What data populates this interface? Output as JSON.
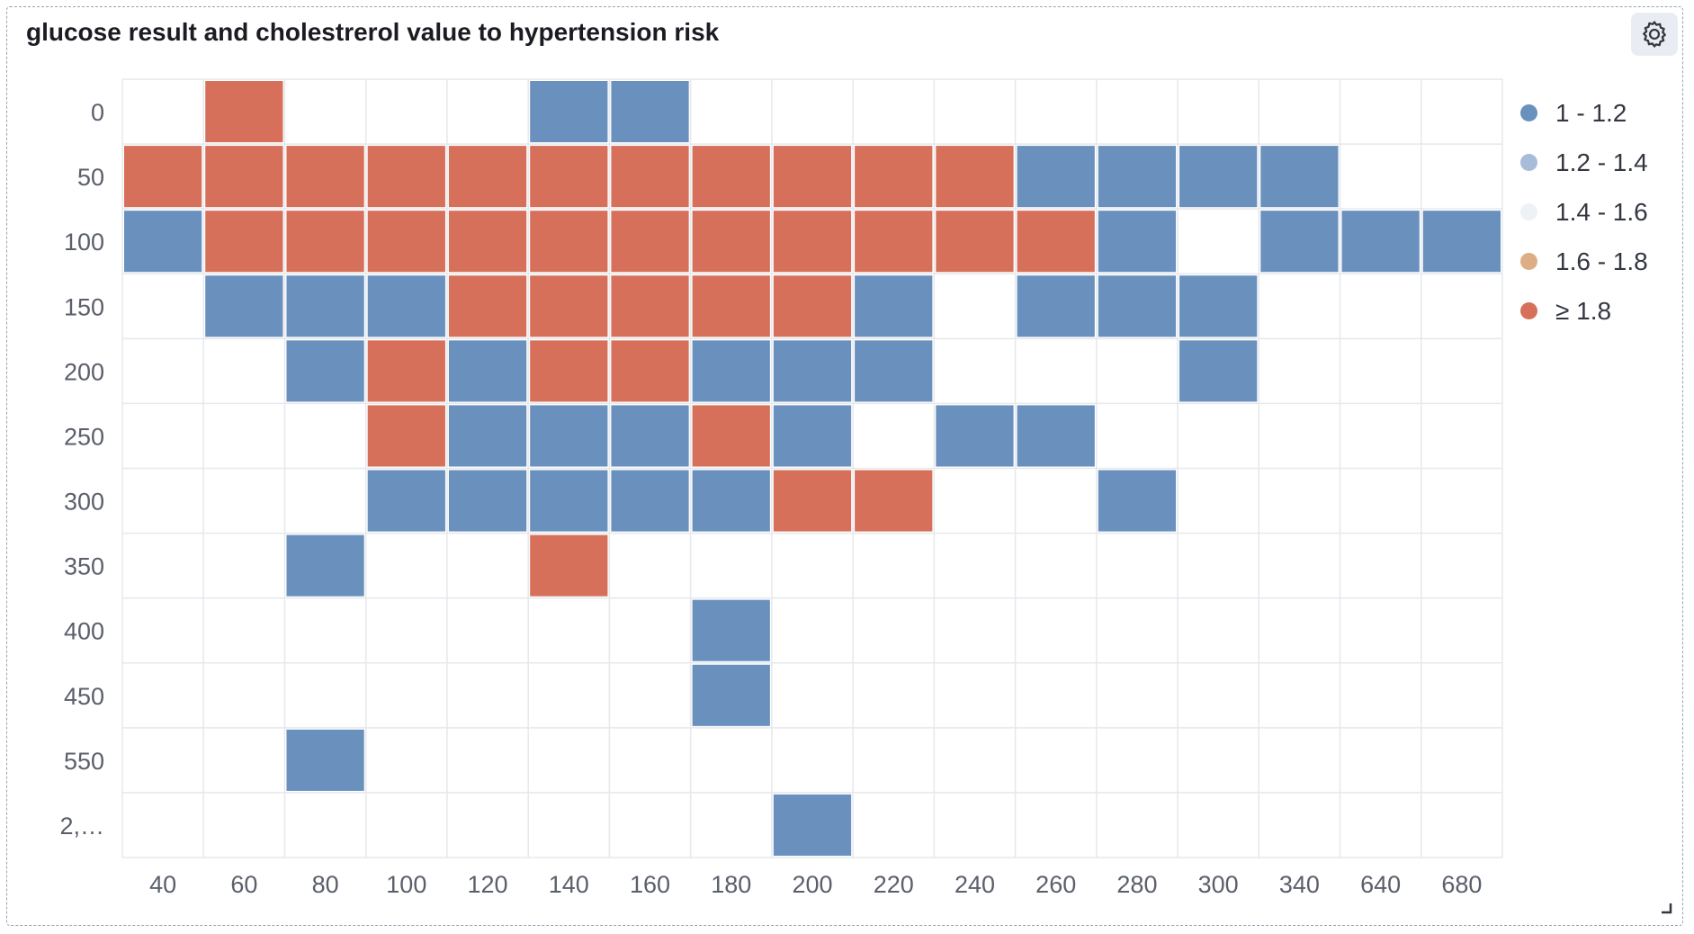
{
  "panel": {
    "title": "glucose result and cholestrerol value to hypertension risk",
    "settings_icon": "gear-icon",
    "resize_icon": "resize-handle-icon"
  },
  "colors": {
    "low": "#6a91be",
    "low_mid": "#a8bcd9",
    "mid": "#eef1f5",
    "high_mid": "#ddae86",
    "high": "#d6705a",
    "grid": "#e6e8ec",
    "axis_text": "#5a5f6b"
  },
  "legend": [
    {
      "label": "1 - 1.2",
      "color": "#6a91be"
    },
    {
      "label": "1.2 - 1.4",
      "color": "#a8bcd9"
    },
    {
      "label": "1.4 - 1.6",
      "color": "#eef1f5"
    },
    {
      "label": "1.6 - 1.8",
      "color": "#ddae86"
    },
    {
      "label": "≥ 1.8",
      "color": "#d6705a"
    }
  ],
  "chart_data": {
    "type": "heatmap",
    "title": "glucose result and cholestrerol value to hypertension risk",
    "x_categories": [
      "40",
      "60",
      "80",
      "100",
      "120",
      "140",
      "160",
      "180",
      "200",
      "220",
      "240",
      "260",
      "280",
      "300",
      "340",
      "640",
      "680"
    ],
    "y_categories": [
      "0",
      "50",
      "100",
      "150",
      "200",
      "250",
      "300",
      "350",
      "400",
      "450",
      "550",
      "2,…"
    ],
    "cells": [
      {
        "x": "60",
        "y": "0",
        "band": "≥ 1.8"
      },
      {
        "x": "140",
        "y": "0",
        "band": "1 - 1.2"
      },
      {
        "x": "160",
        "y": "0",
        "band": "1 - 1.2"
      },
      {
        "x": "40",
        "y": "50",
        "band": "≥ 1.8"
      },
      {
        "x": "60",
        "y": "50",
        "band": "≥ 1.8"
      },
      {
        "x": "80",
        "y": "50",
        "band": "≥ 1.8"
      },
      {
        "x": "100",
        "y": "50",
        "band": "≥ 1.8"
      },
      {
        "x": "120",
        "y": "50",
        "band": "≥ 1.8"
      },
      {
        "x": "140",
        "y": "50",
        "band": "≥ 1.8"
      },
      {
        "x": "160",
        "y": "50",
        "band": "≥ 1.8"
      },
      {
        "x": "180",
        "y": "50",
        "band": "≥ 1.8"
      },
      {
        "x": "200",
        "y": "50",
        "band": "≥ 1.8"
      },
      {
        "x": "220",
        "y": "50",
        "band": "≥ 1.8"
      },
      {
        "x": "240",
        "y": "50",
        "band": "≥ 1.8"
      },
      {
        "x": "260",
        "y": "50",
        "band": "1 - 1.2"
      },
      {
        "x": "280",
        "y": "50",
        "band": "1 - 1.2"
      },
      {
        "x": "300",
        "y": "50",
        "band": "1 - 1.2"
      },
      {
        "x": "340",
        "y": "50",
        "band": "1 - 1.2"
      },
      {
        "x": "40",
        "y": "100",
        "band": "1 - 1.2"
      },
      {
        "x": "60",
        "y": "100",
        "band": "≥ 1.8"
      },
      {
        "x": "80",
        "y": "100",
        "band": "≥ 1.8"
      },
      {
        "x": "100",
        "y": "100",
        "band": "≥ 1.8"
      },
      {
        "x": "120",
        "y": "100",
        "band": "≥ 1.8"
      },
      {
        "x": "140",
        "y": "100",
        "band": "≥ 1.8"
      },
      {
        "x": "160",
        "y": "100",
        "band": "≥ 1.8"
      },
      {
        "x": "180",
        "y": "100",
        "band": "≥ 1.8"
      },
      {
        "x": "200",
        "y": "100",
        "band": "≥ 1.8"
      },
      {
        "x": "220",
        "y": "100",
        "band": "≥ 1.8"
      },
      {
        "x": "240",
        "y": "100",
        "band": "≥ 1.8"
      },
      {
        "x": "260",
        "y": "100",
        "band": "≥ 1.8"
      },
      {
        "x": "280",
        "y": "100",
        "band": "1 - 1.2"
      },
      {
        "x": "340",
        "y": "100",
        "band": "1 - 1.2"
      },
      {
        "x": "640",
        "y": "100",
        "band": "1 - 1.2"
      },
      {
        "x": "680",
        "y": "100",
        "band": "1 - 1.2"
      },
      {
        "x": "60",
        "y": "150",
        "band": "1 - 1.2"
      },
      {
        "x": "80",
        "y": "150",
        "band": "1 - 1.2"
      },
      {
        "x": "100",
        "y": "150",
        "band": "1 - 1.2"
      },
      {
        "x": "120",
        "y": "150",
        "band": "≥ 1.8"
      },
      {
        "x": "140",
        "y": "150",
        "band": "≥ 1.8"
      },
      {
        "x": "160",
        "y": "150",
        "band": "≥ 1.8"
      },
      {
        "x": "180",
        "y": "150",
        "band": "≥ 1.8"
      },
      {
        "x": "200",
        "y": "150",
        "band": "≥ 1.8"
      },
      {
        "x": "220",
        "y": "150",
        "band": "1 - 1.2"
      },
      {
        "x": "260",
        "y": "150",
        "band": "1 - 1.2"
      },
      {
        "x": "280",
        "y": "150",
        "band": "1 - 1.2"
      },
      {
        "x": "300",
        "y": "150",
        "band": "1 - 1.2"
      },
      {
        "x": "80",
        "y": "200",
        "band": "1 - 1.2"
      },
      {
        "x": "100",
        "y": "200",
        "band": "≥ 1.8"
      },
      {
        "x": "120",
        "y": "200",
        "band": "1 - 1.2"
      },
      {
        "x": "140",
        "y": "200",
        "band": "≥ 1.8"
      },
      {
        "x": "160",
        "y": "200",
        "band": "≥ 1.8"
      },
      {
        "x": "180",
        "y": "200",
        "band": "1 - 1.2"
      },
      {
        "x": "200",
        "y": "200",
        "band": "1 - 1.2"
      },
      {
        "x": "220",
        "y": "200",
        "band": "1 - 1.2"
      },
      {
        "x": "300",
        "y": "200",
        "band": "1 - 1.2"
      },
      {
        "x": "100",
        "y": "250",
        "band": "≥ 1.8"
      },
      {
        "x": "120",
        "y": "250",
        "band": "1 - 1.2"
      },
      {
        "x": "140",
        "y": "250",
        "band": "1 - 1.2"
      },
      {
        "x": "160",
        "y": "250",
        "band": "1 - 1.2"
      },
      {
        "x": "180",
        "y": "250",
        "band": "≥ 1.8"
      },
      {
        "x": "200",
        "y": "250",
        "band": "1 - 1.2"
      },
      {
        "x": "240",
        "y": "250",
        "band": "1 - 1.2"
      },
      {
        "x": "260",
        "y": "250",
        "band": "1 - 1.2"
      },
      {
        "x": "100",
        "y": "300",
        "band": "1 - 1.2"
      },
      {
        "x": "120",
        "y": "300",
        "band": "1 - 1.2"
      },
      {
        "x": "140",
        "y": "300",
        "band": "1 - 1.2"
      },
      {
        "x": "160",
        "y": "300",
        "band": "1 - 1.2"
      },
      {
        "x": "180",
        "y": "300",
        "band": "1 - 1.2"
      },
      {
        "x": "200",
        "y": "300",
        "band": "≥ 1.8"
      },
      {
        "x": "220",
        "y": "300",
        "band": "≥ 1.8"
      },
      {
        "x": "280",
        "y": "300",
        "band": "1 - 1.2"
      },
      {
        "x": "80",
        "y": "350",
        "band": "1 - 1.2"
      },
      {
        "x": "140",
        "y": "350",
        "band": "≥ 1.8"
      },
      {
        "x": "180",
        "y": "400",
        "band": "1 - 1.2"
      },
      {
        "x": "180",
        "y": "450",
        "band": "1 - 1.2"
      },
      {
        "x": "80",
        "y": "550",
        "band": "1 - 1.2"
      },
      {
        "x": "200",
        "y": "2,…",
        "band": "1 - 1.2"
      }
    ],
    "grid": true,
    "legend_position": "right"
  }
}
